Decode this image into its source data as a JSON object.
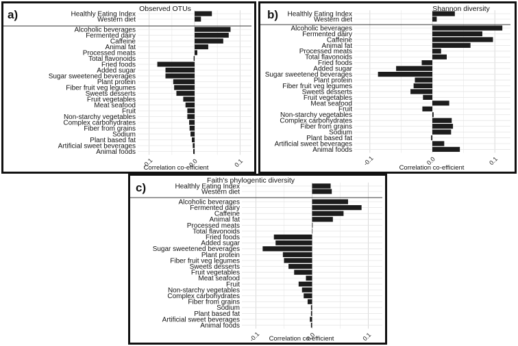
{
  "chart_data": [
    {
      "type": "bar",
      "orientation": "horizontal",
      "panel_label": "a)",
      "title": "Observed OTUs",
      "xlabel": "Correlation co-efficient",
      "xlim": [
        -0.125,
        0.125
      ],
      "xticks": [
        -0.1,
        0.0,
        0.1
      ],
      "xtick_labels": [
        "-0.1",
        "0.0",
        "0.1"
      ],
      "grid": true,
      "group_top": {
        "categories": [
          "Healthly Eating Index",
          "Western diet"
        ],
        "values": [
          0.038,
          0.014
        ]
      },
      "group_bottom": {
        "categories": [
          "Alcoholic beverages",
          "Fermented dairy",
          "Caffeine",
          "Animal fat",
          "Processed meats",
          "Total flavonoids",
          "Fried foods",
          "Added sugar",
          "Sugar sweetened beverages",
          "Plant protein",
          "Fiber fruit veg legumes",
          "Sweets desserts",
          "Fruit vegetables",
          "Meat seafood",
          "Fruit",
          "Non-starchy vegetables",
          "Complex carbohydrates",
          "Fiber from grains",
          "Sodium",
          "Plant based fat",
          "Artificial sweet beverages",
          "Animal foods"
        ],
        "values": [
          0.079,
          0.075,
          0.063,
          0.03,
          0.006,
          -0.002,
          -0.082,
          -0.064,
          -0.064,
          -0.047,
          -0.045,
          -0.04,
          -0.025,
          -0.02,
          -0.016,
          -0.016,
          -0.012,
          -0.011,
          -0.009,
          -0.006,
          -0.004,
          -0.003
        ]
      }
    },
    {
      "type": "bar",
      "orientation": "horizontal",
      "panel_label": "b)",
      "title": "Shannon diversity",
      "xlabel": "Correlation co-efficient",
      "xlim": [
        -0.125,
        0.125
      ],
      "xticks": [
        -0.1,
        0.0,
        0.1
      ],
      "xtick_labels": [
        "-0.1",
        "0.0",
        "0.1"
      ],
      "grid": true,
      "group_top": {
        "categories": [
          "Healthly Eating Index",
          "Western diet"
        ],
        "values": [
          0.036,
          0.007
        ]
      },
      "group_bottom": {
        "categories": [
          "Alcoholic beverages",
          "Fermented dairy",
          "Caffeine",
          "Animal fat",
          "Processed meats",
          "Total flavonoids",
          "Fried foods",
          "Added sugar",
          "Sugar sweetened beverages",
          "Plant protein",
          "Fiber fruit veg legumes",
          "Sweets desserts",
          "Fruit vegetables",
          "Meat seafood",
          "Fruit",
          "Non-starchy vegetables",
          "Complex carbohydrates",
          "Fiber from grains",
          "Sodium",
          "Plant based fat",
          "Artificial sweet beverages",
          "Animal foods"
        ],
        "values": [
          0.112,
          0.08,
          0.097,
          0.061,
          0.014,
          0.023,
          -0.017,
          -0.058,
          -0.087,
          -0.028,
          -0.03,
          -0.035,
          -0.015,
          0.027,
          -0.016,
          0.002,
          0.031,
          0.033,
          0.03,
          -0.002,
          0.019,
          0.044
        ]
      }
    },
    {
      "type": "bar",
      "orientation": "horizontal",
      "panel_label": "c)",
      "title": "Faith's phylogentic diversity",
      "xlabel": "Correlation co-efficient",
      "xlim": [
        -0.125,
        0.125
      ],
      "xticks": [
        -0.1,
        0.0,
        0.1
      ],
      "xtick_labels": [
        "-0.1",
        "0.0",
        "0.1"
      ],
      "grid": true,
      "group_top": {
        "categories": [
          "Healthly Eating Index",
          "Western diet"
        ],
        "values": [
          0.033,
          0.035
        ]
      },
      "group_bottom": {
        "categories": [
          "Alcoholic beverages",
          "Fermented dairy",
          "Caffeine",
          "Animal fat",
          "Processed meats",
          "Total flavonoids",
          "Fried foods",
          "Added sugar",
          "Sugar sweetened beverages",
          "Plant protein",
          "Fiber fruit veg legumes",
          "Sweets desserts",
          "Fruit vegetables",
          "Meat seafood",
          "Fruit",
          "Non-starchy vegetables",
          "Complex carbohydrates",
          "Fiber from grains",
          "Sodium",
          "Plant based fat",
          "Artificial sweet beverages",
          "Animal foods"
        ],
        "values": [
          0.064,
          0.088,
          0.056,
          0.037,
          0.001,
          0.0,
          -0.068,
          -0.065,
          -0.088,
          -0.052,
          -0.05,
          -0.042,
          -0.032,
          -0.011,
          -0.024,
          -0.018,
          -0.015,
          -0.008,
          -0.002,
          -0.002,
          -0.004,
          -0.002
        ]
      }
    }
  ]
}
